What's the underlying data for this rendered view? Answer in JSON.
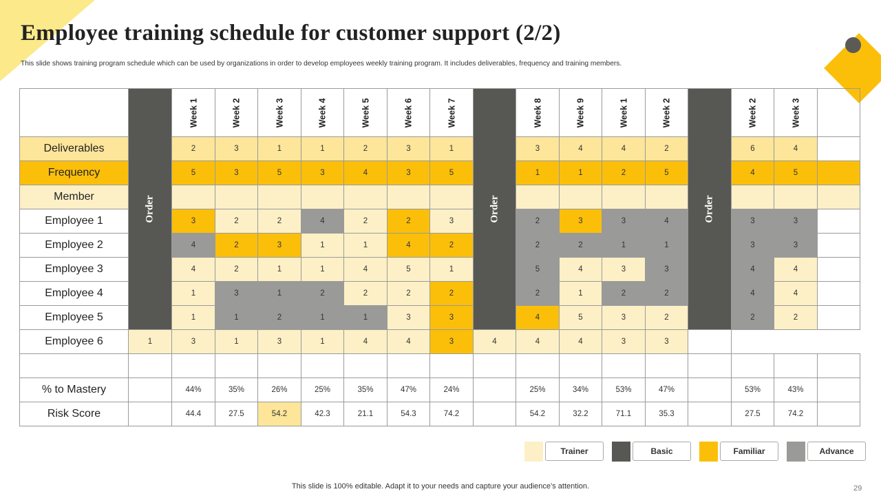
{
  "slide": {
    "title": "Employee training schedule for customer support (2/2)",
    "subtitle": "This slide shows training program schedule which can be used by organizations in order to develop employees weekly training program. It includes deliverables, frequency and training members.",
    "footer": "This slide is 100% editable. Adapt it to your needs and capture your audience’s attention.",
    "page_number": "29"
  },
  "table": {
    "order_label": "Order",
    "weeks": [
      "Week 1",
      "Week 2",
      "Week 3",
      "Week 4",
      "Week 5",
      "Week 6",
      "Week 7",
      "Week 8",
      "Week 9",
      "Week 1",
      "Week 2",
      "Week 2",
      "Week 3"
    ],
    "rows": [
      {
        "label": "Deliverables",
        "values": [
          "2",
          "3",
          "1",
          "1",
          "2",
          "3",
          "1",
          "3",
          "4",
          "4",
          "2",
          "6",
          "4"
        ]
      },
      {
        "label": "Frequency",
        "values": [
          "5",
          "3",
          "5",
          "3",
          "4",
          "3",
          "5",
          "1",
          "1",
          "2",
          "5",
          "4",
          "5"
        ]
      },
      {
        "label": "Member",
        "values": [
          "",
          "",
          "",
          "",
          "",
          "",
          "",
          "",
          "",
          "",
          "",
          "",
          ""
        ]
      },
      {
        "label": "Employee 1",
        "values": [
          "3",
          "2",
          "2",
          "4",
          "2",
          "2",
          "3",
          "2",
          "3",
          "3",
          "4",
          "3",
          "3"
        ]
      },
      {
        "label": "Employee 2",
        "values": [
          "4",
          "2",
          "3",
          "1",
          "1",
          "4",
          "2",
          "2",
          "2",
          "1",
          "1",
          "3",
          "3"
        ]
      },
      {
        "label": "Employee 3",
        "values": [
          "4",
          "2",
          "1",
          "1",
          "4",
          "5",
          "1",
          "5",
          "4",
          "3",
          "3",
          "4",
          "4"
        ]
      },
      {
        "label": "Employee 4",
        "values": [
          "1",
          "3",
          "1",
          "2",
          "2",
          "2",
          "2",
          "2",
          "1",
          "2",
          "2",
          "4",
          "4"
        ]
      },
      {
        "label": "Employee 5",
        "values": [
          "1",
          "1",
          "2",
          "1",
          "1",
          "3",
          "3",
          "4",
          "5",
          "3",
          "2",
          "2",
          "2"
        ]
      },
      {
        "label": "Employee 6",
        "values": [
          "1",
          "3",
          "1",
          "3",
          "1",
          "4",
          "4",
          "3",
          "4",
          "4",
          "4",
          "3",
          "3"
        ]
      },
      {
        "label": "",
        "values": [
          "",
          "",
          "",
          "",
          "",
          "",
          "",
          "",
          "",
          "",
          "",
          "",
          ""
        ]
      },
      {
        "label": "% to Mastery",
        "values": [
          "44%",
          "35%",
          "26%",
          "25%",
          "35%",
          "47%",
          "24%",
          "25%",
          "34%",
          "53%",
          "47%",
          "53%",
          "43%"
        ]
      },
      {
        "label": "Risk Score",
        "values": [
          "44.4",
          "27.5",
          "54.2",
          "42.3",
          "21.1",
          "54.3",
          "74.2",
          "54.2",
          "32.2",
          "71.1",
          "35.3",
          "27.5",
          "74.2"
        ]
      }
    ]
  },
  "legend": [
    {
      "label": "Trainer",
      "color": "#fdf0c6"
    },
    {
      "label": "Basic",
      "color": "#575754"
    },
    {
      "label": "Familiar",
      "color": "#fbbf0a"
    },
    {
      "label": "Advance",
      "color": "#9a9a98"
    }
  ],
  "colors": {
    "accent_yellow": "#fbbf0a",
    "light_yellow": "#fdf0c6",
    "mid_yellow": "#fde59a",
    "gray": "#9a9a98",
    "dark_gray": "#575754"
  }
}
